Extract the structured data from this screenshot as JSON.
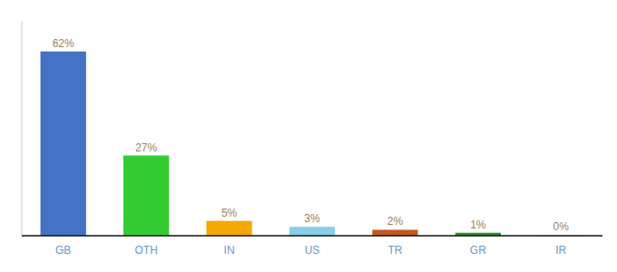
{
  "chart_data": {
    "type": "bar",
    "categories": [
      "GB",
      "OTH",
      "IN",
      "US",
      "TR",
      "GR",
      "IR"
    ],
    "values": [
      62,
      27,
      5,
      3,
      2,
      1,
      0.3
    ],
    "value_labels": [
      "62%",
      "27%",
      "5%",
      "3%",
      "2%",
      "1%",
      "0%"
    ],
    "colors": [
      "#4472C4",
      "#33CC33",
      "#F5A800",
      "#87CEEB",
      "#C05A1F",
      "#2E8B2E",
      "#CCCCCC"
    ],
    "ylim": [
      0,
      72
    ],
    "data_labels": true,
    "tick_labels": "x",
    "grid": false
  }
}
